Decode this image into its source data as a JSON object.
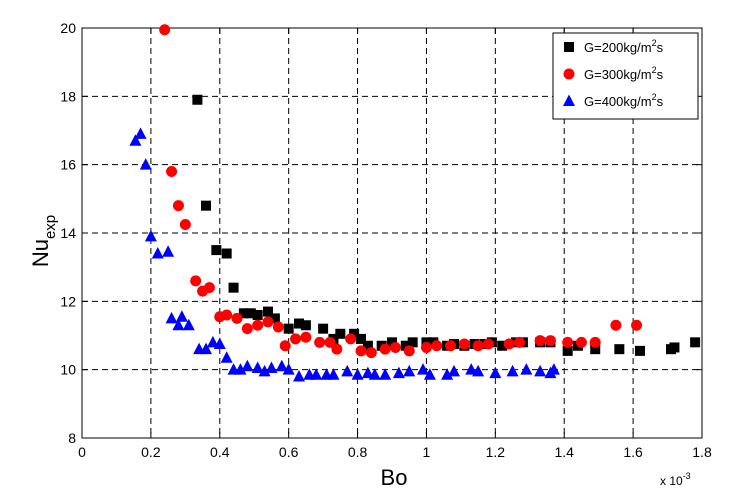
{
  "chart_data": {
    "type": "scatter",
    "title": "",
    "xlabel": "Bo",
    "ylabel_main": "Nu",
    "ylabel_sub": "exp",
    "x_multiplier_base": "x 10",
    "x_multiplier_exp": "-3",
    "xlim": [
      0,
      1.8
    ],
    "ylim": [
      8,
      20
    ],
    "xticks": [
      0,
      0.2,
      0.4,
      0.6,
      0.8,
      1,
      1.2,
      1.4,
      1.6,
      1.8
    ],
    "xtick_labels": [
      "0",
      "0.2",
      "0.4",
      "0.6",
      "0.8",
      "1",
      "1.2",
      "1.4",
      "1.6",
      "1.8"
    ],
    "yticks": [
      8,
      10,
      12,
      14,
      16,
      18,
      20
    ],
    "ytick_labels": [
      "8",
      "10",
      "12",
      "14",
      "16",
      "18",
      "20"
    ],
    "grid": true,
    "legend_position": "top-right",
    "series": [
      {
        "name": "G=200kg/m²s",
        "legend_main": "G=200kg/m",
        "legend_sup": "2",
        "legend_end": "s",
        "marker": "square",
        "color": "#000000",
        "points": [
          [
            0.335,
            17.9
          ],
          [
            0.36,
            14.8
          ],
          [
            0.39,
            13.5
          ],
          [
            0.42,
            13.4
          ],
          [
            0.44,
            12.4
          ],
          [
            0.47,
            11.65
          ],
          [
            0.49,
            11.65
          ],
          [
            0.51,
            11.6
          ],
          [
            0.54,
            11.7
          ],
          [
            0.56,
            11.5
          ],
          [
            0.6,
            11.2
          ],
          [
            0.63,
            11.35
          ],
          [
            0.65,
            11.3
          ],
          [
            0.7,
            11.2
          ],
          [
            0.73,
            10.9
          ],
          [
            0.75,
            11.05
          ],
          [
            0.79,
            11.05
          ],
          [
            0.81,
            10.9
          ],
          [
            0.83,
            10.7
          ],
          [
            0.87,
            10.7
          ],
          [
            0.9,
            10.8
          ],
          [
            0.94,
            10.7
          ],
          [
            0.96,
            10.8
          ],
          [
            1.0,
            10.8
          ],
          [
            1.02,
            10.8
          ],
          [
            1.06,
            10.7
          ],
          [
            1.08,
            10.75
          ],
          [
            1.11,
            10.7
          ],
          [
            1.14,
            10.75
          ],
          [
            1.17,
            10.75
          ],
          [
            1.19,
            10.8
          ],
          [
            1.22,
            10.7
          ],
          [
            1.26,
            10.8
          ],
          [
            1.28,
            10.8
          ],
          [
            1.33,
            10.8
          ],
          [
            1.36,
            10.8
          ],
          [
            1.41,
            10.55
          ],
          [
            1.44,
            10.7
          ],
          [
            1.49,
            10.6
          ],
          [
            1.56,
            10.6
          ],
          [
            1.62,
            10.55
          ],
          [
            1.71,
            10.6
          ],
          [
            1.72,
            10.65
          ],
          [
            1.78,
            10.8
          ]
        ]
      },
      {
        "name": "G=300kg/m²s",
        "legend_main": "G=300kg/m",
        "legend_sup": "2",
        "legend_end": "s",
        "marker": "circle",
        "color": "#ff0000",
        "points": [
          [
            0.24,
            19.95
          ],
          [
            0.26,
            15.8
          ],
          [
            0.28,
            14.8
          ],
          [
            0.3,
            14.25
          ],
          [
            0.33,
            12.6
          ],
          [
            0.35,
            12.3
          ],
          [
            0.37,
            12.4
          ],
          [
            0.4,
            11.55
          ],
          [
            0.42,
            11.6
          ],
          [
            0.45,
            11.5
          ],
          [
            0.48,
            11.2
          ],
          [
            0.51,
            11.3
          ],
          [
            0.54,
            11.4
          ],
          [
            0.57,
            11.25
          ],
          [
            0.59,
            10.7
          ],
          [
            0.62,
            10.9
          ],
          [
            0.65,
            10.95
          ],
          [
            0.69,
            10.8
          ],
          [
            0.72,
            10.8
          ],
          [
            0.74,
            10.6
          ],
          [
            0.78,
            10.9
          ],
          [
            0.81,
            10.55
          ],
          [
            0.84,
            10.5
          ],
          [
            0.88,
            10.6
          ],
          [
            0.91,
            10.65
          ],
          [
            0.95,
            10.55
          ],
          [
            1.0,
            10.65
          ],
          [
            1.03,
            10.7
          ],
          [
            1.07,
            10.7
          ],
          [
            1.11,
            10.75
          ],
          [
            1.15,
            10.7
          ],
          [
            1.18,
            10.75
          ],
          [
            1.24,
            10.75
          ],
          [
            1.27,
            10.8
          ],
          [
            1.33,
            10.85
          ],
          [
            1.36,
            10.85
          ],
          [
            1.41,
            10.8
          ],
          [
            1.45,
            10.8
          ],
          [
            1.49,
            10.8
          ],
          [
            1.55,
            11.3
          ],
          [
            1.61,
            11.3
          ]
        ]
      },
      {
        "name": "G=400kg/m²s",
        "legend_main": "G=400kg/m",
        "legend_sup": "2",
        "legend_end": "s",
        "marker": "triangle",
        "color": "#0000ff",
        "points": [
          [
            0.155,
            16.7
          ],
          [
            0.17,
            16.9
          ],
          [
            0.185,
            16.0
          ],
          [
            0.2,
            13.9
          ],
          [
            0.22,
            13.4
          ],
          [
            0.25,
            13.45
          ],
          [
            0.26,
            11.5
          ],
          [
            0.28,
            11.3
          ],
          [
            0.29,
            11.55
          ],
          [
            0.31,
            11.3
          ],
          [
            0.34,
            10.6
          ],
          [
            0.36,
            10.6
          ],
          [
            0.38,
            10.8
          ],
          [
            0.4,
            10.75
          ],
          [
            0.42,
            10.35
          ],
          [
            0.44,
            10.0
          ],
          [
            0.46,
            10.0
          ],
          [
            0.48,
            10.1
          ],
          [
            0.51,
            10.05
          ],
          [
            0.53,
            9.95
          ],
          [
            0.55,
            10.05
          ],
          [
            0.58,
            10.1
          ],
          [
            0.6,
            10.0
          ],
          [
            0.63,
            9.8
          ],
          [
            0.66,
            9.85
          ],
          [
            0.68,
            9.85
          ],
          [
            0.71,
            9.85
          ],
          [
            0.73,
            9.85
          ],
          [
            0.77,
            9.95
          ],
          [
            0.8,
            9.85
          ],
          [
            0.83,
            9.9
          ],
          [
            0.85,
            9.85
          ],
          [
            0.88,
            9.85
          ],
          [
            0.92,
            9.9
          ],
          [
            0.95,
            9.95
          ],
          [
            0.99,
            10.0
          ],
          [
            1.01,
            9.85
          ],
          [
            1.06,
            9.85
          ],
          [
            1.08,
            9.95
          ],
          [
            1.13,
            10.0
          ],
          [
            1.15,
            9.95
          ],
          [
            1.2,
            9.9
          ],
          [
            1.25,
            9.95
          ],
          [
            1.29,
            10.0
          ],
          [
            1.33,
            9.95
          ],
          [
            1.36,
            9.9
          ],
          [
            1.37,
            10.0
          ]
        ]
      }
    ]
  }
}
